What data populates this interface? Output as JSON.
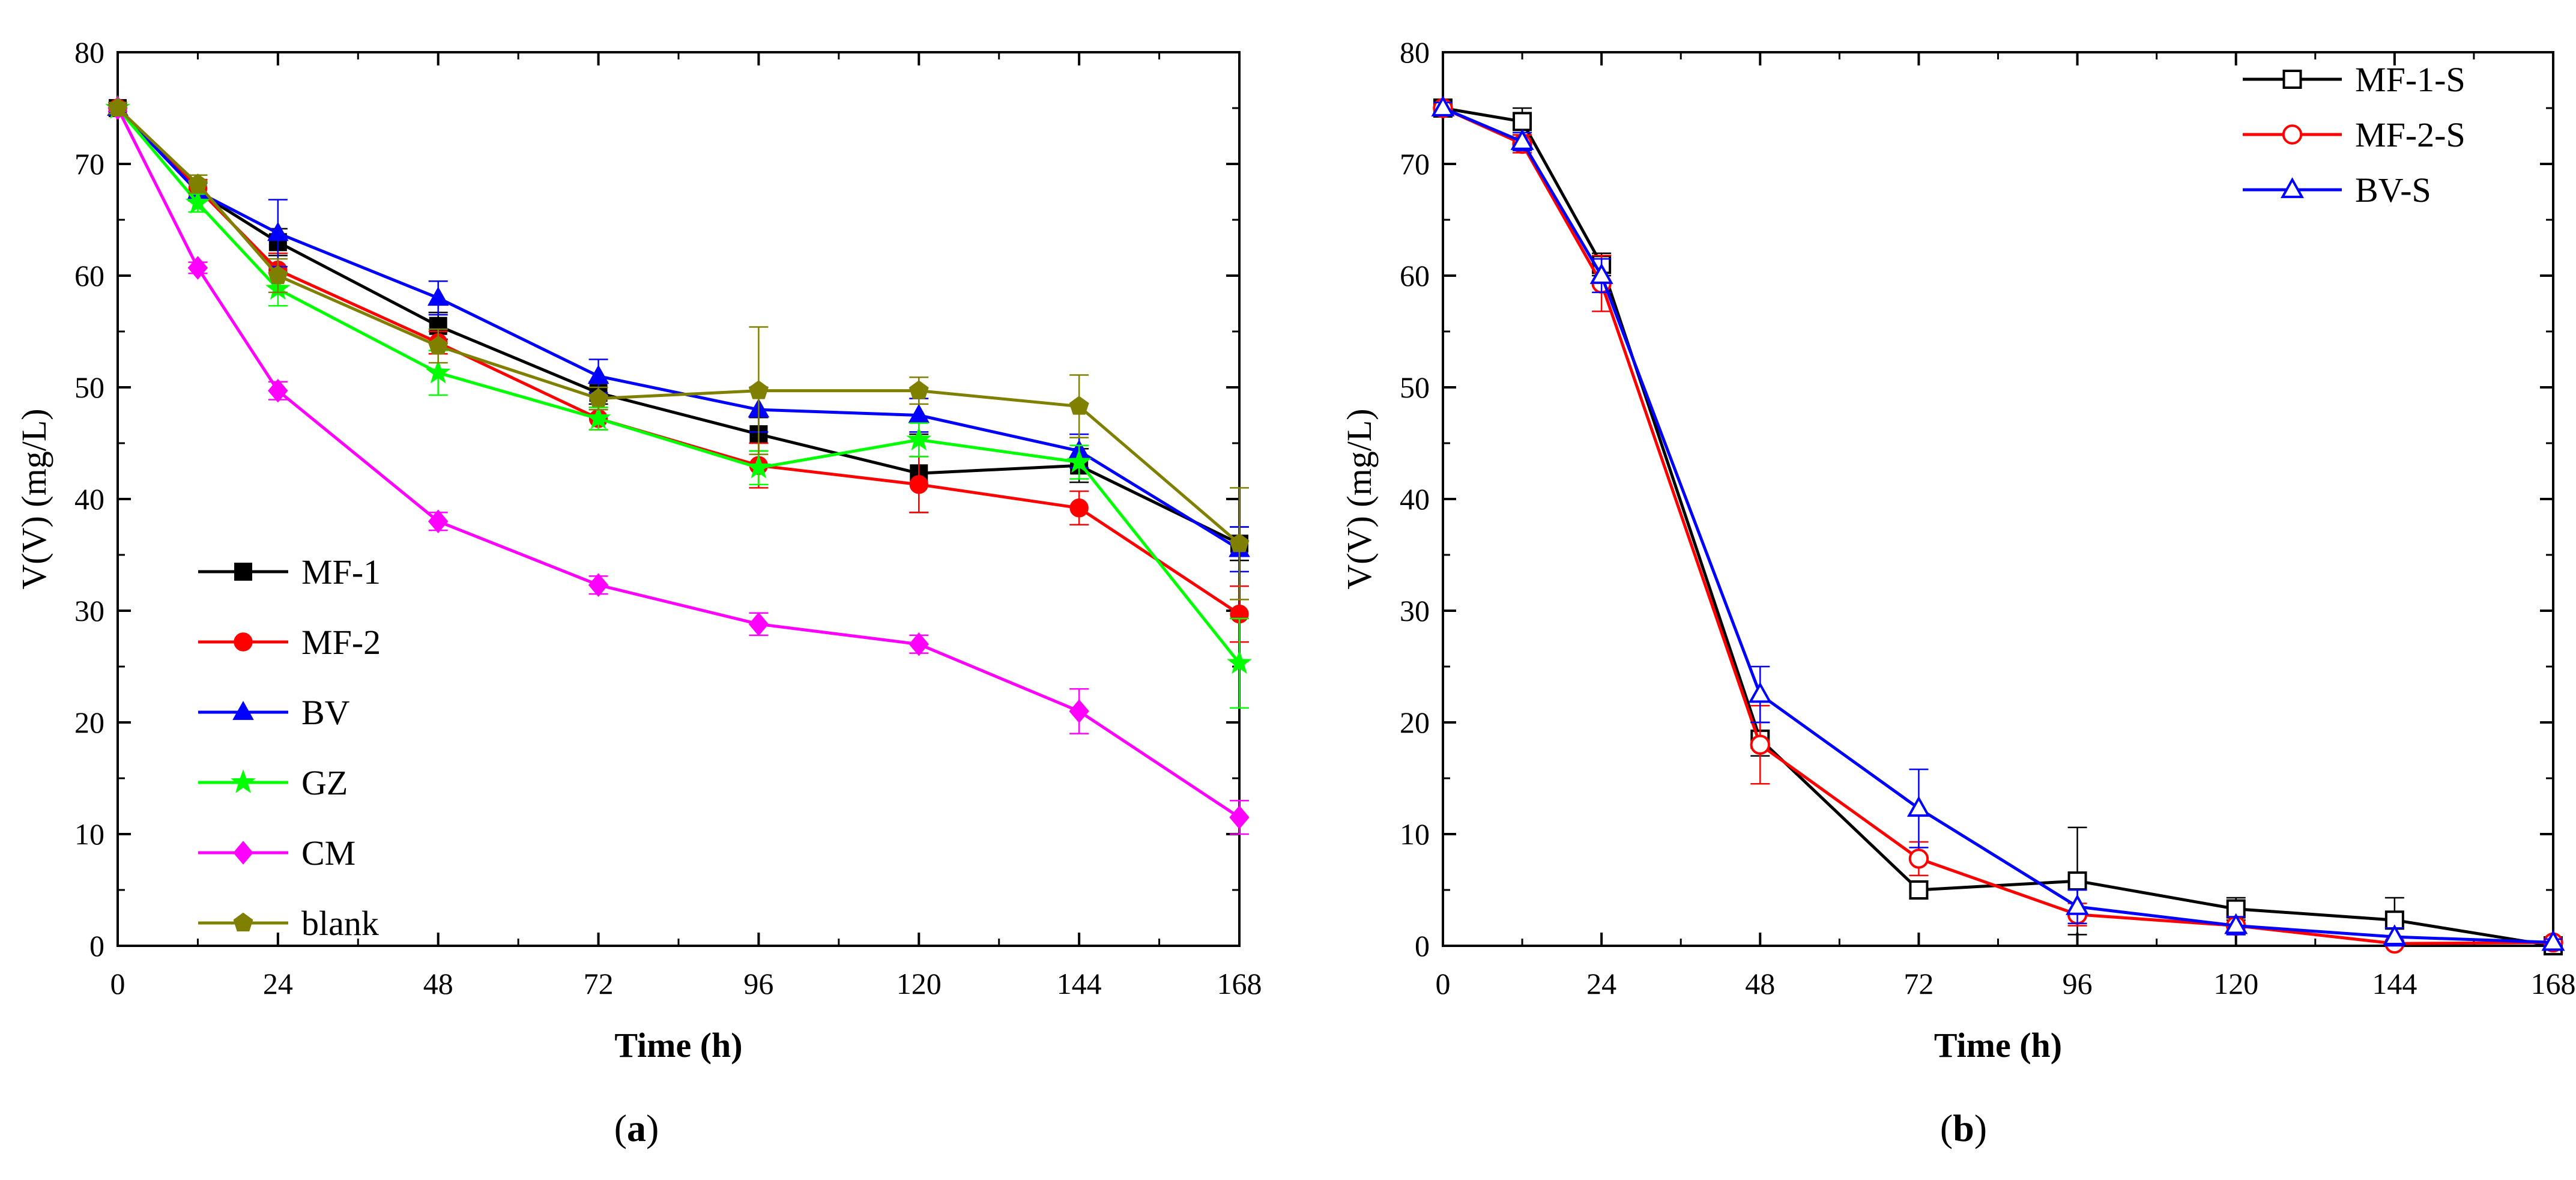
{
  "chart_data": [
    {
      "type": "line",
      "panel_label": "(a)",
      "panel_letter": "a",
      "xlabel": "Time (h)",
      "ylabel": "V(V) (mg/L)",
      "xlim": [
        0,
        168
      ],
      "ylim": [
        0,
        80
      ],
      "xticks": [
        0,
        24,
        48,
        72,
        96,
        120,
        144,
        168
      ],
      "yticks": [
        0,
        10,
        20,
        30,
        40,
        50,
        60,
        70,
        80
      ],
      "legend_position": "bottom-left",
      "x": [
        0,
        12,
        24,
        48,
        72,
        96,
        120,
        144,
        168
      ],
      "series": [
        {
          "name": "MF-1",
          "color": "#000000",
          "marker": "square-filled",
          "values": [
            75,
            67.5,
            63,
            55.5,
            49.5,
            45.8,
            42.3,
            43,
            36
          ],
          "errors": [
            0.5,
            0.8,
            1.2,
            1.2,
            1.0,
            1.5,
            3.5,
            1.5,
            1.5
          ]
        },
        {
          "name": "MF-2",
          "color": "#ff0000",
          "marker": "circle-filled",
          "values": [
            75,
            67.8,
            60.5,
            54,
            47.2,
            43,
            41.3,
            39.2,
            29.7
          ],
          "errors": [
            0.5,
            0.8,
            1.5,
            1.0,
            1.0,
            2.0,
            2.5,
            1.5,
            2.5
          ]
        },
        {
          "name": "BV",
          "color": "#0000ff",
          "marker": "triangle-filled",
          "values": [
            75,
            67.5,
            63.8,
            58,
            51,
            48,
            47.5,
            44.3,
            35.5
          ],
          "errors": [
            0.5,
            0.8,
            3.0,
            1.5,
            1.5,
            2.0,
            1.5,
            1.5,
            2.0
          ]
        },
        {
          "name": "GZ",
          "color": "#00ff00",
          "marker": "star",
          "values": [
            75,
            66.5,
            58.8,
            51.3,
            47.2,
            42.8,
            45.3,
            43.3,
            25.3
          ],
          "errors": [
            0.5,
            0.8,
            1.5,
            2.0,
            1.0,
            1.5,
            1.5,
            1.5,
            4.0
          ]
        },
        {
          "name": "CM",
          "color": "#ff00ff",
          "marker": "diamond-filled",
          "values": [
            75,
            60.7,
            49.7,
            38,
            32.3,
            28.8,
            27,
            21,
            11.5
          ],
          "errors": [
            0.3,
            0.5,
            0.8,
            0.8,
            0.8,
            1.0,
            0.8,
            2.0,
            1.5
          ]
        },
        {
          "name": "blank",
          "color": "#808000",
          "marker": "pentagon-filled",
          "values": [
            75,
            68.2,
            60,
            53.7,
            49,
            49.7,
            49.7,
            48.3,
            36
          ],
          "errors": [
            0.5,
            0.8,
            1.5,
            1.5,
            1.0,
            5.7,
            1.2,
            2.8,
            5.0
          ]
        }
      ]
    },
    {
      "type": "line",
      "panel_label": "(b)",
      "panel_letter": "b",
      "xlabel": "Time (h)",
      "ylabel": "V(V) (mg/L)",
      "xlim": [
        0,
        168
      ],
      "ylim": [
        0,
        80
      ],
      "xticks": [
        0,
        24,
        48,
        72,
        96,
        120,
        144,
        168
      ],
      "yticks": [
        0,
        10,
        20,
        30,
        40,
        50,
        60,
        70,
        80
      ],
      "legend_position": "top-right",
      "x": [
        0,
        12,
        24,
        48,
        72,
        96,
        120,
        144,
        168
      ],
      "series": [
        {
          "name": "MF-1-S",
          "color": "#000000",
          "marker": "square-open",
          "values": [
            75,
            73.8,
            61,
            18.5,
            5,
            5.8,
            3.3,
            2.3,
            0
          ],
          "errors": [
            0.5,
            1.2,
            1.0,
            1.5,
            0.8,
            4.8,
            1.0,
            2.0,
            0.3
          ]
        },
        {
          "name": "MF-2-S",
          "color": "#ff0000",
          "marker": "circle-open",
          "values": [
            75,
            71.8,
            59.3,
            18,
            7.8,
            2.8,
            1.8,
            0.2,
            0.3
          ],
          "errors": [
            0.5,
            0.8,
            2.5,
            3.5,
            1.5,
            1.0,
            0.8,
            0.3,
            0.3
          ]
        },
        {
          "name": "BV-S",
          "color": "#0000ff",
          "marker": "triangle-open",
          "values": [
            75,
            72,
            60,
            22.5,
            12.3,
            3.5,
            1.8,
            0.8,
            0.3
          ],
          "errors": [
            0.5,
            0.8,
            1.5,
            2.5,
            3.5,
            1.5,
            0.8,
            0.8,
            0.3
          ]
        }
      ]
    }
  ]
}
